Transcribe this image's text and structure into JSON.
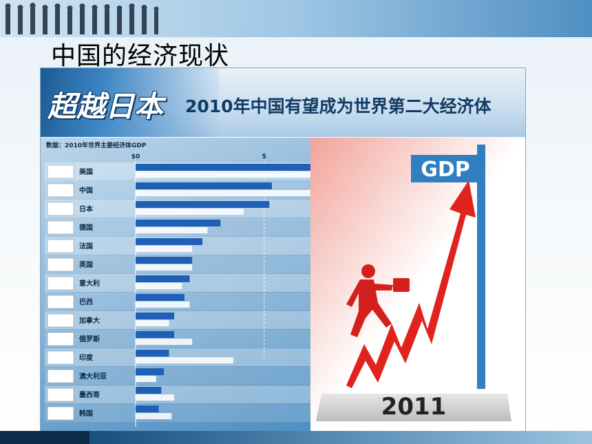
{
  "slide": {
    "title": "中国的经济现状"
  },
  "figure": {
    "headline_big": "超越日本",
    "headline_sub": "2010年中国有望成为世界第二大经济体",
    "source_note": "数据：2010年世界主要经济体GDP",
    "illustration": {
      "sign_text": "GDP",
      "year_text": "2011",
      "colors": {
        "arrow": "#e0231c",
        "sign": "#2f7fc1",
        "base": "#d9d9d9"
      }
    }
  },
  "chart_data": {
    "type": "bar",
    "orientation": "horizontal",
    "title": "",
    "tick_labels": [
      "$0",
      "5"
    ],
    "xlim": [
      0,
      6.8
    ],
    "categories": [
      "美国",
      "中国",
      "日本",
      "德国",
      "法国",
      "英国",
      "意大利",
      "巴西",
      "加拿大",
      "俄罗斯",
      "印度",
      "澳大利亚",
      "墨西哥",
      "韩国"
    ],
    "flags": [
      "us-flag-icon",
      "china-flag-icon",
      "japan-flag-icon",
      "germany-flag-icon",
      "france-flag-icon",
      "uk-flag-icon",
      "italy-flag-icon",
      "brazil-flag-icon",
      "canada-flag-icon",
      "russia-flag-icon",
      "india-flag-icon",
      "australia-flag-icon",
      "mexico-flag-icon",
      "korea-flag-icon"
    ],
    "series": [
      {
        "values": [
          6.8,
          5.3,
          5.2,
          3.3,
          2.6,
          2.2,
          2.1,
          1.9,
          1.5,
          1.5,
          1.3,
          1.1,
          1.0,
          0.9
        ]
      },
      {
        "values": [
          6.8,
          6.8,
          4.2,
          2.8,
          2.2,
          2.2,
          1.8,
          2.1,
          1.3,
          2.2,
          3.8,
          0.8,
          1.5,
          1.4
        ]
      }
    ],
    "colors": [
      "#1f5fb5",
      "#ffffff"
    ],
    "gridline_at": 5
  }
}
